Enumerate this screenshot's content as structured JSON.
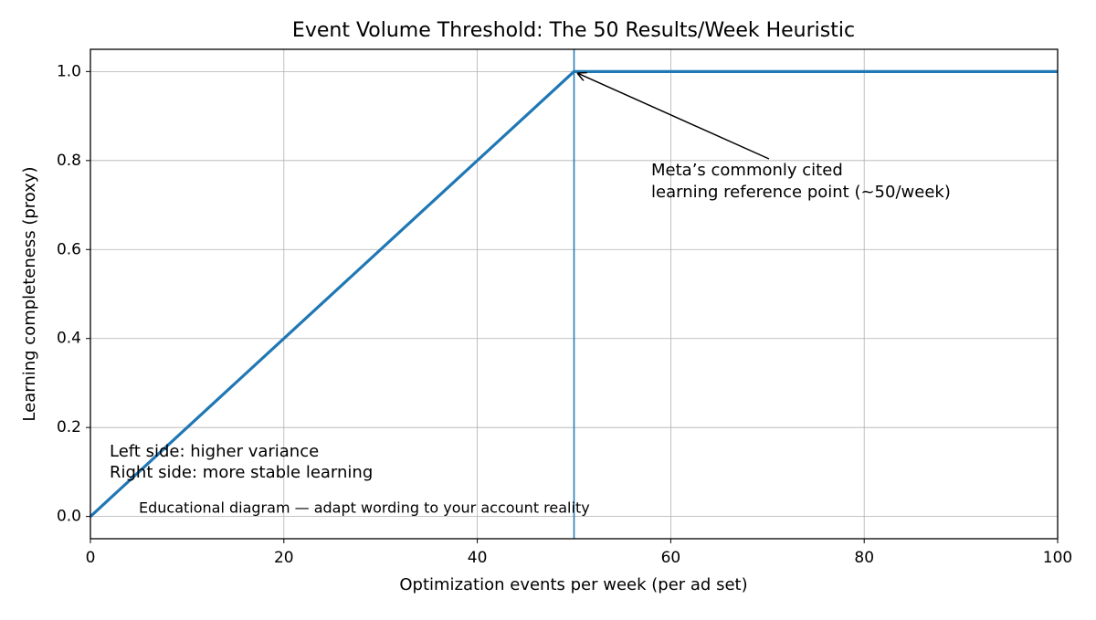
{
  "chart_data": {
    "type": "line",
    "title": "Event Volume Threshold: The 50 Results/Week Heuristic",
    "x_label": "Optimization events per week (per ad set)",
    "y_label": "Learning completeness (proxy)",
    "x": [
      0,
      50,
      100
    ],
    "series": [
      {
        "color": "#1f77b4",
        "values": [
          0,
          1,
          1
        ]
      }
    ],
    "vline": {
      "value": 50,
      "color": "#1f77b4"
    },
    "xlim": [
      0,
      100
    ],
    "ylim": [
      -0.05,
      1.05
    ],
    "xticks": [
      0,
      20,
      40,
      60,
      80,
      100
    ],
    "yticks": [
      {
        "value": 0,
        "label": "0.0"
      },
      {
        "value": 0.2,
        "label": "0.2"
      },
      {
        "value": 0.4,
        "label": "0.4"
      },
      {
        "value": 0.6,
        "label": "0.6"
      },
      {
        "value": 0.8,
        "label": "0.8"
      },
      {
        "value": 1,
        "label": "1.0"
      }
    ],
    "grid": true,
    "annotation": [
      "Meta’s commonly cited",
      "learning reference point (~50/week)"
    ],
    "side_note": [
      "Left side: higher variance",
      "Right side: more stable learning"
    ],
    "footnote": "Educational diagram — adapt wording to your account reality"
  }
}
